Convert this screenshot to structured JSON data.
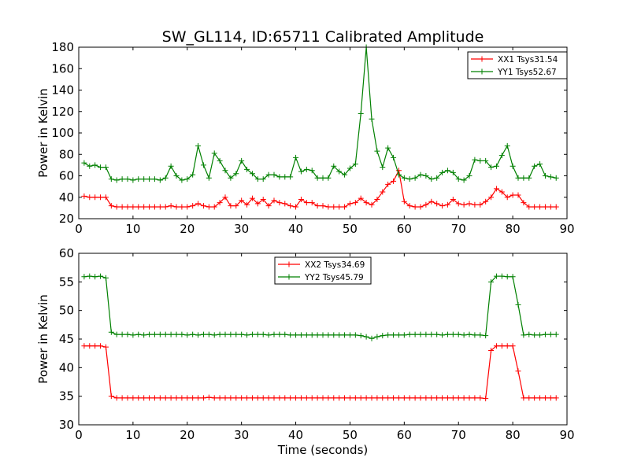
{
  "figure": {
    "title": "SW_GL114, ID:65711 Calibrated Amplitude"
  },
  "chart_data": [
    {
      "type": "line",
      "title": "SW_GL114, ID:65711 Calibrated Amplitude",
      "xlabel": "",
      "ylabel": "Power in Kelvin",
      "xlim": [
        0,
        90
      ],
      "ylim": [
        20,
        180
      ],
      "xticks": [
        0,
        10,
        20,
        30,
        40,
        50,
        60,
        70,
        80,
        90
      ],
      "yticks": [
        20,
        40,
        60,
        80,
        100,
        120,
        140,
        160,
        180
      ],
      "legend_position": "top-right",
      "x": [
        1,
        2,
        3,
        4,
        5,
        6,
        7,
        8,
        9,
        10,
        11,
        12,
        13,
        14,
        15,
        16,
        17,
        18,
        19,
        20,
        21,
        22,
        23,
        24,
        25,
        26,
        27,
        28,
        29,
        30,
        31,
        32,
        33,
        34,
        35,
        36,
        37,
        38,
        39,
        40,
        41,
        42,
        43,
        44,
        45,
        46,
        47,
        48,
        49,
        50,
        51,
        52,
        53,
        54,
        55,
        56,
        57,
        58,
        59,
        60,
        61,
        62,
        63,
        64,
        65,
        66,
        67,
        68,
        69,
        70,
        71,
        72,
        73,
        74,
        75,
        76,
        77,
        78,
        79,
        80,
        81,
        82,
        83,
        84,
        85,
        86,
        87,
        88
      ],
      "series": [
        {
          "name": "XX1 Tsys31.54",
          "color": "#ff0000",
          "values": [
            41,
            40,
            40,
            40,
            40,
            32,
            31,
            31,
            31,
            31,
            31,
            31,
            31,
            31,
            31,
            31,
            32,
            31,
            31,
            31,
            32,
            34,
            32,
            31,
            31,
            35,
            40,
            32,
            32,
            37,
            33,
            39,
            34,
            38,
            32,
            37,
            35,
            34,
            32,
            31,
            38,
            35,
            35,
            32,
            32,
            31,
            31,
            31,
            31,
            34,
            35,
            39,
            35,
            33,
            38,
            45,
            52,
            55,
            65,
            36,
            32,
            31,
            31,
            33,
            36,
            34,
            32,
            33,
            38,
            34,
            33,
            34,
            33,
            33,
            36,
            40,
            48,
            45,
            40,
            42,
            42,
            35,
            31,
            31,
            31,
            31,
            31,
            31
          ]
        },
        {
          "name": "YY1 Tsys52.67",
          "color": "#008000",
          "values": [
            72,
            69,
            70,
            68,
            68,
            57,
            56,
            57,
            57,
            56,
            57,
            57,
            57,
            57,
            56,
            58,
            69,
            60,
            56,
            57,
            61,
            88,
            70,
            58,
            81,
            74,
            65,
            58,
            62,
            74,
            66,
            62,
            57,
            57,
            61,
            61,
            59,
            59,
            59,
            77,
            64,
            66,
            65,
            58,
            58,
            58,
            69,
            64,
            61,
            67,
            71,
            118,
            180,
            113,
            83,
            68,
            86,
            77,
            61,
            58,
            57,
            58,
            61,
            60,
            57,
            58,
            63,
            65,
            63,
            57,
            56,
            60,
            75,
            74,
            74,
            68,
            69,
            79,
            88,
            69,
            58,
            58,
            58,
            69,
            71,
            60,
            59,
            58
          ]
        }
      ]
    },
    {
      "type": "line",
      "title": "",
      "xlabel": "Time (seconds)",
      "ylabel": "Power in Kelvin",
      "xlim": [
        0,
        90
      ],
      "ylim": [
        30,
        60
      ],
      "xticks": [
        0,
        10,
        20,
        30,
        40,
        50,
        60,
        70,
        80,
        90
      ],
      "yticks": [
        30,
        35,
        40,
        45,
        50,
        55,
        60
      ],
      "legend_position": "top-center",
      "x": [
        1,
        2,
        3,
        4,
        5,
        6,
        7,
        8,
        9,
        10,
        11,
        12,
        13,
        14,
        15,
        16,
        17,
        18,
        19,
        20,
        21,
        22,
        23,
        24,
        25,
        26,
        27,
        28,
        29,
        30,
        31,
        32,
        33,
        34,
        35,
        36,
        37,
        38,
        39,
        40,
        41,
        42,
        43,
        44,
        45,
        46,
        47,
        48,
        49,
        50,
        51,
        52,
        53,
        54,
        55,
        56,
        57,
        58,
        59,
        60,
        61,
        62,
        63,
        64,
        65,
        66,
        67,
        68,
        69,
        70,
        71,
        72,
        73,
        74,
        75,
        76,
        77,
        78,
        79,
        80,
        81,
        82,
        83,
        84,
        85,
        86,
        87,
        88
      ],
      "series": [
        {
          "name": "XX2 Tsys34.69",
          "color": "#ff0000",
          "values": [
            43.8,
            43.8,
            43.8,
            43.8,
            43.6,
            35.0,
            34.7,
            34.7,
            34.7,
            34.7,
            34.7,
            34.7,
            34.7,
            34.7,
            34.7,
            34.7,
            34.7,
            34.7,
            34.7,
            34.7,
            34.7,
            34.7,
            34.7,
            34.8,
            34.7,
            34.7,
            34.7,
            34.7,
            34.7,
            34.7,
            34.7,
            34.7,
            34.7,
            34.7,
            34.7,
            34.7,
            34.7,
            34.7,
            34.7,
            34.7,
            34.7,
            34.7,
            34.7,
            34.7,
            34.7,
            34.7,
            34.7,
            34.7,
            34.7,
            34.7,
            34.7,
            34.7,
            34.7,
            34.7,
            34.7,
            34.7,
            34.7,
            34.7,
            34.7,
            34.7,
            34.7,
            34.7,
            34.7,
            34.7,
            34.7,
            34.7,
            34.7,
            34.7,
            34.7,
            34.7,
            34.7,
            34.7,
            34.7,
            34.7,
            34.6,
            43.0,
            43.8,
            43.8,
            43.8,
            43.8,
            39.4,
            34.7,
            34.7,
            34.7,
            34.7,
            34.7,
            34.7,
            34.7
          ]
        },
        {
          "name": "YY2 Tsys45.79",
          "color": "#008000",
          "values": [
            55.9,
            56.0,
            55.9,
            56.0,
            55.7,
            46.2,
            45.8,
            45.8,
            45.8,
            45.7,
            45.8,
            45.7,
            45.8,
            45.8,
            45.8,
            45.8,
            45.8,
            45.8,
            45.8,
            45.7,
            45.8,
            45.7,
            45.8,
            45.8,
            45.7,
            45.8,
            45.8,
            45.8,
            45.8,
            45.8,
            45.7,
            45.8,
            45.8,
            45.8,
            45.7,
            45.8,
            45.8,
            45.8,
            45.7,
            45.7,
            45.7,
            45.7,
            45.7,
            45.7,
            45.7,
            45.7,
            45.7,
            45.7,
            45.7,
            45.7,
            45.7,
            45.6,
            45.4,
            45.1,
            45.4,
            45.6,
            45.7,
            45.7,
            45.7,
            45.7,
            45.8,
            45.8,
            45.8,
            45.8,
            45.8,
            45.8,
            45.7,
            45.8,
            45.8,
            45.8,
            45.7,
            45.8,
            45.7,
            45.7,
            45.6,
            55.0,
            56.0,
            56.0,
            55.9,
            55.9,
            51.0,
            45.7,
            45.8,
            45.7,
            45.7,
            45.8,
            45.8,
            45.8
          ]
        }
      ]
    }
  ]
}
